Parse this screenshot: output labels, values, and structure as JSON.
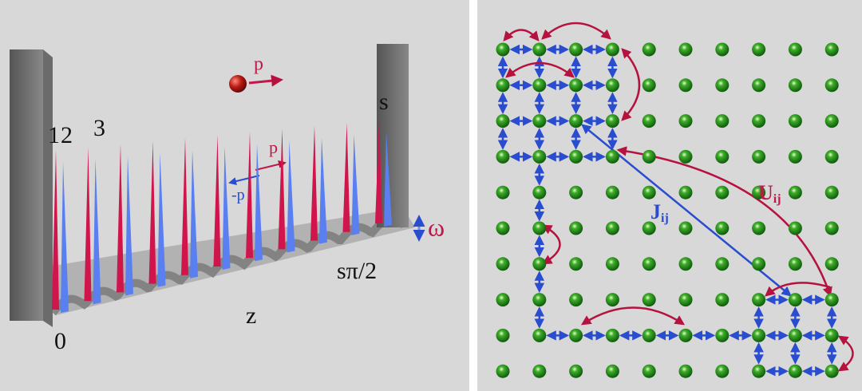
{
  "left": {
    "labels": {
      "one": "1",
      "two": "2",
      "three": "3",
      "s": "s",
      "p_ball": "p",
      "p": "p",
      "minus_p": "-p",
      "omega": "ω",
      "s_pi_half": "sπ/2",
      "z": "z",
      "zero": "0"
    }
  },
  "right": {
    "J": "J",
    "J_sub": "ij",
    "U": "U",
    "U_sub": "ij"
  }
}
